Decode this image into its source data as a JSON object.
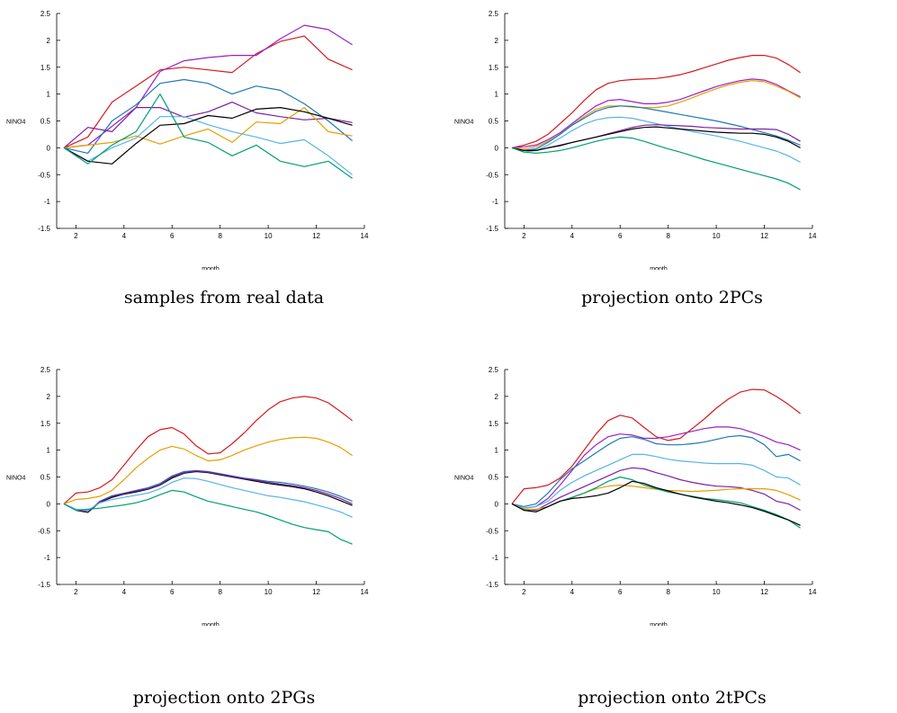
{
  "figure": {
    "captions": [
      "samples from real data",
      "projection onto 2PCs",
      "projection onto 2PGs",
      "projection onto 2tPCs"
    ]
  },
  "colors": {
    "red": "#d7191c",
    "purple": "#9b1fc9",
    "blue": "#1f78b4",
    "orange": "#e69f00",
    "lightblue": "#56b4e9",
    "green": "#009e73",
    "black": "#000000",
    "darkpurple": "#7b1fa2"
  },
  "chart_data": [
    {
      "type": "line",
      "title": "samples from real data",
      "xlabel": "month",
      "ylabel": "NINO4",
      "xlim": [
        1.2,
        14
      ],
      "ylim": [
        -1.5,
        2.5
      ],
      "xticks": [
        "2",
        "4",
        "6",
        "8",
        "10",
        "12",
        "14"
      ],
      "yticks": [
        "-1.5",
        "-1",
        "-0.5",
        "0",
        "0.5",
        "1",
        "1.5",
        "2",
        "2.5"
      ],
      "x": [
        1.5,
        2.5,
        3.5,
        4.5,
        5.5,
        6.5,
        7.5,
        8.5,
        9.5,
        10.5,
        11.5,
        12.5,
        13.5
      ],
      "series": [
        {
          "color": "red",
          "values": [
            0,
            0.2,
            0.85,
            1.15,
            1.45,
            1.5,
            1.45,
            1.4,
            1.75,
            1.98,
            2.08,
            1.65,
            1.45
          ]
        },
        {
          "color": "purple",
          "values": [
            0,
            0.05,
            0.4,
            0.75,
            1.42,
            1.62,
            1.68,
            1.72,
            1.72,
            2.03,
            2.28,
            2.2,
            1.92
          ]
        },
        {
          "color": "blue",
          "values": [
            0,
            -0.1,
            0.5,
            0.8,
            1.2,
            1.27,
            1.2,
            1.0,
            1.15,
            1.07,
            0.82,
            0.5,
            0.13
          ]
        },
        {
          "color": "darkpurple",
          "values": [
            0,
            0.38,
            0.3,
            0.75,
            0.75,
            0.57,
            0.67,
            0.85,
            0.65,
            0.58,
            0.52,
            0.55,
            0.47
          ]
        },
        {
          "color": "orange",
          "values": [
            0,
            0.05,
            0.1,
            0.22,
            0.07,
            0.22,
            0.35,
            0.1,
            0.48,
            0.45,
            0.75,
            0.3,
            0.22
          ]
        },
        {
          "color": "lightblue",
          "values": [
            0,
            -0.25,
            0.0,
            0.18,
            0.58,
            0.58,
            0.43,
            0.3,
            0.2,
            0.08,
            0.15,
            -0.15,
            -0.5
          ]
        },
        {
          "color": "black",
          "values": [
            0,
            -0.25,
            -0.3,
            0.08,
            0.42,
            0.45,
            0.6,
            0.55,
            0.72,
            0.75,
            0.67,
            0.55,
            0.42
          ]
        },
        {
          "color": "green",
          "values": [
            0,
            -0.3,
            0.05,
            0.3,
            1.0,
            0.2,
            0.1,
            -0.15,
            0.05,
            -0.25,
            -0.35,
            -0.25,
            -0.57
          ]
        }
      ]
    },
    {
      "type": "line",
      "title": "projection onto 2PCs",
      "xlabel": "month",
      "ylabel": "NINO4",
      "xlim": [
        1.2,
        14
      ],
      "ylim": [
        -1.5,
        2.5
      ],
      "xticks": [
        "2",
        "4",
        "6",
        "8",
        "10",
        "12",
        "14"
      ],
      "yticks": [
        "-1.5",
        "-1",
        "-0.5",
        "0",
        "0.5",
        "1",
        "1.5",
        "2",
        "2.5"
      ],
      "x": [
        1.5,
        2,
        2.5,
        3,
        3.5,
        4,
        4.5,
        5,
        5.5,
        6,
        6.5,
        7,
        7.5,
        8,
        8.5,
        9,
        9.5,
        10,
        10.5,
        11,
        11.5,
        12,
        12.5,
        13,
        13.5
      ],
      "series": [
        {
          "color": "red",
          "values": [
            0,
            0.05,
            0.12,
            0.25,
            0.45,
            0.65,
            0.88,
            1.08,
            1.2,
            1.25,
            1.27,
            1.28,
            1.29,
            1.32,
            1.36,
            1.42,
            1.49,
            1.56,
            1.63,
            1.68,
            1.72,
            1.72,
            1.67,
            1.55,
            1.4
          ]
        },
        {
          "color": "purple",
          "values": [
            0,
            0.02,
            0.05,
            0.15,
            0.28,
            0.45,
            0.62,
            0.78,
            0.88,
            0.9,
            0.86,
            0.82,
            0.82,
            0.85,
            0.9,
            0.98,
            1.06,
            1.14,
            1.2,
            1.25,
            1.28,
            1.26,
            1.18,
            1.06,
            0.95
          ]
        },
        {
          "color": "orange",
          "values": [
            0,
            -0.02,
            0.02,
            0.12,
            0.25,
            0.42,
            0.58,
            0.72,
            0.78,
            0.78,
            0.76,
            0.75,
            0.75,
            0.78,
            0.85,
            0.93,
            1.02,
            1.1,
            1.17,
            1.22,
            1.25,
            1.23,
            1.15,
            1.05,
            0.93
          ]
        },
        {
          "color": "blue",
          "values": [
            0,
            -0.05,
            -0.02,
            0.1,
            0.25,
            0.42,
            0.55,
            0.68,
            0.75,
            0.78,
            0.77,
            0.74,
            0.7,
            0.66,
            0.62,
            0.58,
            0.54,
            0.5,
            0.45,
            0.4,
            0.34,
            0.28,
            0.22,
            0.14,
            0.05
          ]
        },
        {
          "color": "lightblue",
          "values": [
            0,
            -0.08,
            -0.05,
            0.05,
            0.18,
            0.32,
            0.44,
            0.52,
            0.56,
            0.57,
            0.55,
            0.5,
            0.45,
            0.4,
            0.35,
            0.3,
            0.26,
            0.22,
            0.17,
            0.12,
            0.06,
            0.0,
            -0.06,
            -0.15,
            -0.27
          ]
        },
        {
          "color": "darkpurple",
          "values": [
            0,
            -0.05,
            -0.05,
            0.0,
            0.05,
            0.1,
            0.15,
            0.2,
            0.26,
            0.32,
            0.38,
            0.42,
            0.43,
            0.42,
            0.41,
            0.4,
            0.38,
            0.37,
            0.36,
            0.35,
            0.35,
            0.35,
            0.34,
            0.25,
            0.12
          ]
        },
        {
          "color": "black",
          "values": [
            0,
            -0.05,
            -0.05,
            0.0,
            0.04,
            0.1,
            0.15,
            0.2,
            0.25,
            0.3,
            0.35,
            0.38,
            0.39,
            0.37,
            0.35,
            0.33,
            0.31,
            0.29,
            0.28,
            0.27,
            0.27,
            0.25,
            0.2,
            0.12,
            0.0
          ]
        },
        {
          "color": "green",
          "values": [
            0,
            -0.08,
            -0.1,
            -0.08,
            -0.05,
            0.0,
            0.06,
            0.12,
            0.17,
            0.2,
            0.18,
            0.12,
            0.05,
            -0.02,
            -0.08,
            -0.15,
            -0.22,
            -0.28,
            -0.34,
            -0.4,
            -0.46,
            -0.52,
            -0.58,
            -0.66,
            -0.78
          ]
        }
      ]
    },
    {
      "type": "line",
      "title": "projection onto 2PGs",
      "xlabel": "month",
      "ylabel": "NINO4",
      "xlim": [
        1.2,
        14
      ],
      "ylim": [
        -1.5,
        2.5
      ],
      "xticks": [
        "2",
        "4",
        "6",
        "8",
        "10",
        "12",
        "14"
      ],
      "yticks": [
        "-1.5",
        "-1",
        "-0.5",
        "0",
        "0.5",
        "1",
        "1.5",
        "2",
        "2.5"
      ],
      "x": [
        1.5,
        2,
        2.5,
        3,
        3.5,
        4,
        4.5,
        5,
        5.5,
        6,
        6.5,
        7,
        7.5,
        8,
        8.5,
        9,
        9.5,
        10,
        10.5,
        11,
        11.5,
        12,
        12.5,
        13,
        13.5
      ],
      "series": [
        {
          "color": "red",
          "values": [
            0,
            0.2,
            0.22,
            0.3,
            0.45,
            0.72,
            1.0,
            1.25,
            1.38,
            1.42,
            1.3,
            1.08,
            0.93,
            0.95,
            1.12,
            1.32,
            1.55,
            1.75,
            1.9,
            1.97,
            2.0,
            1.97,
            1.88,
            1.72,
            1.55
          ]
        },
        {
          "color": "orange",
          "values": [
            0,
            0.08,
            0.1,
            0.14,
            0.25,
            0.45,
            0.67,
            0.85,
            1.0,
            1.07,
            1.02,
            0.9,
            0.8,
            0.82,
            0.9,
            1.0,
            1.08,
            1.15,
            1.2,
            1.23,
            1.24,
            1.22,
            1.15,
            1.05,
            0.9
          ]
        },
        {
          "color": "blue",
          "values": [
            0,
            -0.1,
            -0.15,
            0.05,
            0.15,
            0.2,
            0.25,
            0.3,
            0.38,
            0.52,
            0.6,
            0.62,
            0.6,
            0.56,
            0.52,
            0.48,
            0.45,
            0.42,
            0.4,
            0.37,
            0.33,
            0.28,
            0.22,
            0.14,
            0.05
          ]
        },
        {
          "color": "black",
          "values": [
            0,
            -0.12,
            -0.16,
            0.03,
            0.12,
            0.18,
            0.22,
            0.27,
            0.35,
            0.48,
            0.57,
            0.6,
            0.58,
            0.54,
            0.5,
            0.46,
            0.42,
            0.38,
            0.35,
            0.32,
            0.28,
            0.22,
            0.15,
            0.06,
            -0.03
          ]
        },
        {
          "color": "darkpurple",
          "values": [
            0,
            -0.11,
            -0.15,
            0.04,
            0.14,
            0.19,
            0.24,
            0.28,
            0.36,
            0.5,
            0.58,
            0.61,
            0.59,
            0.55,
            0.51,
            0.47,
            0.44,
            0.4,
            0.37,
            0.34,
            0.3,
            0.25,
            0.18,
            0.1,
            0.0
          ]
        },
        {
          "color": "lightblue",
          "values": [
            0,
            -0.1,
            -0.12,
            0.02,
            0.08,
            0.12,
            0.16,
            0.2,
            0.28,
            0.4,
            0.48,
            0.47,
            0.42,
            0.36,
            0.3,
            0.25,
            0.2,
            0.15,
            0.12,
            0.08,
            0.04,
            -0.02,
            -0.08,
            -0.15,
            -0.25
          ]
        },
        {
          "color": "green",
          "values": [
            0,
            -0.12,
            -0.1,
            -0.08,
            -0.05,
            -0.02,
            0.02,
            0.08,
            0.17,
            0.25,
            0.22,
            0.13,
            0.05,
            0.0,
            -0.05,
            -0.1,
            -0.15,
            -0.22,
            -0.3,
            -0.38,
            -0.44,
            -0.48,
            -0.52,
            -0.66,
            -0.75
          ]
        }
      ]
    },
    {
      "type": "line",
      "title": "projection onto 2tPCs",
      "xlabel": "month",
      "ylabel": "NINO4",
      "xlim": [
        1.2,
        14
      ],
      "ylim": [
        -1.5,
        2.5
      ],
      "xticks": [
        "2",
        "4",
        "6",
        "8",
        "10",
        "12",
        "14"
      ],
      "yticks": [
        "-1.5",
        "-1",
        "-0.5",
        "0",
        "0.5",
        "1",
        "1.5",
        "2",
        "2.5"
      ],
      "x": [
        1.5,
        2,
        2.5,
        3,
        3.5,
        4,
        4.5,
        5,
        5.5,
        6,
        6.5,
        7,
        7.5,
        8,
        8.5,
        9,
        9.5,
        10,
        10.5,
        11,
        11.5,
        12,
        12.5,
        13,
        13.5
      ],
      "series": [
        {
          "color": "red",
          "values": [
            0,
            0.28,
            0.3,
            0.35,
            0.48,
            0.7,
            1.0,
            1.3,
            1.55,
            1.65,
            1.6,
            1.42,
            1.25,
            1.18,
            1.22,
            1.4,
            1.58,
            1.78,
            1.95,
            2.08,
            2.13,
            2.12,
            2.0,
            1.85,
            1.68
          ]
        },
        {
          "color": "purple",
          "values": [
            0,
            -0.08,
            -0.05,
            0.1,
            0.35,
            0.62,
            0.9,
            1.1,
            1.25,
            1.3,
            1.28,
            1.22,
            1.22,
            1.25,
            1.3,
            1.35,
            1.4,
            1.43,
            1.43,
            1.4,
            1.33,
            1.25,
            1.15,
            1.1,
            1.0
          ]
        },
        {
          "color": "blue",
          "values": [
            0,
            -0.05,
            0.0,
            0.2,
            0.45,
            0.65,
            0.8,
            0.95,
            1.1,
            1.22,
            1.25,
            1.2,
            1.12,
            1.1,
            1.1,
            1.12,
            1.15,
            1.2,
            1.25,
            1.27,
            1.23,
            1.1,
            0.88,
            0.92,
            0.8
          ]
        },
        {
          "color": "lightblue",
          "values": [
            0,
            -0.08,
            -0.05,
            0.05,
            0.25,
            0.4,
            0.52,
            0.62,
            0.72,
            0.82,
            0.92,
            0.92,
            0.88,
            0.83,
            0.8,
            0.78,
            0.76,
            0.75,
            0.75,
            0.75,
            0.72,
            0.62,
            0.5,
            0.48,
            0.35
          ]
        },
        {
          "color": "darkpurple",
          "values": [
            0,
            -0.1,
            -0.12,
            0.0,
            0.12,
            0.22,
            0.32,
            0.42,
            0.52,
            0.62,
            0.67,
            0.65,
            0.58,
            0.52,
            0.45,
            0.4,
            0.36,
            0.33,
            0.32,
            0.3,
            0.25,
            0.18,
            0.05,
            0.0,
            -0.12
          ]
        },
        {
          "color": "orange",
          "values": [
            0,
            -0.1,
            -0.1,
            -0.05,
            0.05,
            0.12,
            0.2,
            0.28,
            0.33,
            0.35,
            0.33,
            0.3,
            0.27,
            0.25,
            0.24,
            0.23,
            0.24,
            0.25,
            0.27,
            0.28,
            0.28,
            0.28,
            0.25,
            0.17,
            0.07
          ]
        },
        {
          "color": "green",
          "values": [
            0,
            -0.12,
            -0.15,
            -0.05,
            0.05,
            0.12,
            0.2,
            0.3,
            0.42,
            0.5,
            0.45,
            0.35,
            0.28,
            0.22,
            0.18,
            0.14,
            0.1,
            0.08,
            0.05,
            0.02,
            -0.05,
            -0.12,
            -0.2,
            -0.3,
            -0.45
          ]
        },
        {
          "color": "black",
          "values": [
            0,
            -0.12,
            -0.15,
            -0.05,
            0.05,
            0.1,
            0.12,
            0.15,
            0.2,
            0.3,
            0.42,
            0.38,
            0.3,
            0.24,
            0.18,
            0.13,
            0.09,
            0.05,
            0.02,
            -0.02,
            -0.07,
            -0.14,
            -0.22,
            -0.3,
            -0.4
          ]
        }
      ]
    }
  ]
}
